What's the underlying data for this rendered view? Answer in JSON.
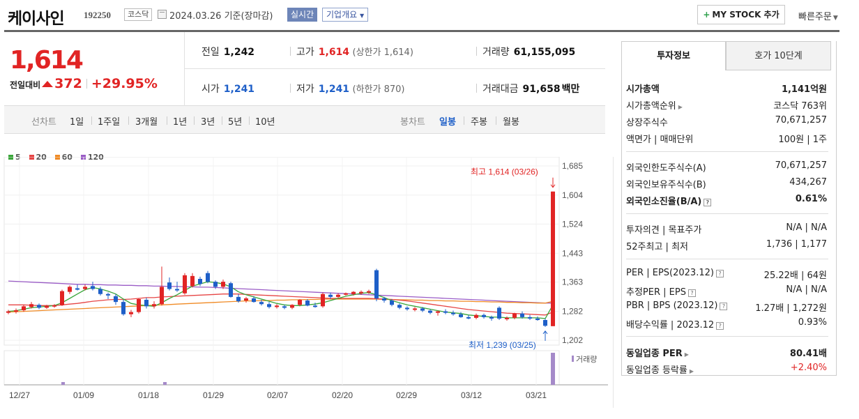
{
  "header": {
    "company_name": "케이사인",
    "code": "192250",
    "market": "코스닥",
    "date_basis": "2024.03.26 기준(장마감)",
    "realtime_button": "실시간",
    "company_overview": "기업개요",
    "mystock_label": "MY STOCK 추가",
    "quick_order": "빠른주문"
  },
  "price": {
    "current": "1,614",
    "change_label": "전일대비",
    "change_amount": "372",
    "change_percent": "+29.95%",
    "prev_close_label": "전일",
    "prev_close": "1,242",
    "high_label": "고가",
    "high": "1,614",
    "upper_limit_label": "(상한가 1,614)",
    "volume_label": "거래량",
    "volume": "61,155,095",
    "open_label": "시가",
    "open": "1,241",
    "low_label": "저가",
    "low": "1,241",
    "lower_limit_label": "(하한가 870)",
    "amount_label": "거래대금",
    "amount": "91,658",
    "amount_unit": "백만"
  },
  "toolbar": {
    "line_chart_label": "선차트",
    "line_periods": [
      "1일",
      "1주일",
      "3개월",
      "1년",
      "3년",
      "5년",
      "10년"
    ],
    "candle_label": "봉차트",
    "candle_periods": [
      "일봉",
      "주봉",
      "월봉"
    ],
    "active_candle": "일봉"
  },
  "legend": [
    {
      "name": "5",
      "color": "#3aa63a"
    },
    {
      "name": "20",
      "color": "#e64545"
    },
    {
      "name": "60",
      "color": "#f08a24"
    },
    {
      "name": "120",
      "color": "#9a5cc6"
    }
  ],
  "chart_data": {
    "type": "candlestick",
    "y_ticks": [
      "1,685",
      "1,604",
      "1,524",
      "1,443",
      "1,363",
      "1,282",
      "1,202"
    ],
    "ylim": [
      1202,
      1685
    ],
    "x_ticks": [
      "12/27",
      "01/09",
      "01/18",
      "01/29",
      "02/07",
      "02/20",
      "02/29",
      "03/12",
      "03/21"
    ],
    "max_annotation": "최고 1,614 (03/26)",
    "min_annotation": "최저 1,239 (03/25)",
    "volume_label": "거래량",
    "candles": [
      [
        1278,
        1286,
        1274,
        1282
      ],
      [
        1281,
        1290,
        1276,
        1285
      ],
      [
        1285,
        1300,
        1281,
        1296
      ],
      [
        1294,
        1308,
        1290,
        1302
      ],
      [
        1300,
        1304,
        1288,
        1292
      ],
      [
        1292,
        1300,
        1289,
        1297
      ],
      [
        1296,
        1302,
        1292,
        1299
      ],
      [
        1299,
        1342,
        1297,
        1338
      ],
      [
        1336,
        1354,
        1330,
        1350
      ],
      [
        1346,
        1356,
        1340,
        1342
      ],
      [
        1344,
        1356,
        1340,
        1350
      ],
      [
        1352,
        1364,
        1340,
        1344
      ],
      [
        1344,
        1350,
        1326,
        1330
      ],
      [
        1330,
        1334,
        1316,
        1326
      ],
      [
        1324,
        1330,
        1300,
        1308
      ],
      [
        1308,
        1314,
        1270,
        1274
      ],
      [
        1274,
        1286,
        1266,
        1280
      ],
      [
        1280,
        1318,
        1276,
        1316
      ],
      [
        1314,
        1320,
        1290,
        1296
      ],
      [
        1296,
        1310,
        1290,
        1302
      ],
      [
        1302,
        1406,
        1298,
        1350
      ],
      [
        1362,
        1376,
        1340,
        1344
      ],
      [
        1344,
        1364,
        1336,
        1340
      ],
      [
        1332,
        1388,
        1328,
        1382
      ],
      [
        1352,
        1388,
        1348,
        1380
      ],
      [
        1372,
        1378,
        1352,
        1358
      ],
      [
        1388,
        1394,
        1360,
        1364
      ],
      [
        1364,
        1368,
        1344,
        1350
      ],
      [
        1350,
        1370,
        1344,
        1364
      ],
      [
        1360,
        1364,
        1320,
        1322
      ],
      [
        1322,
        1330,
        1306,
        1310
      ],
      [
        1312,
        1322,
        1306,
        1318
      ],
      [
        1318,
        1324,
        1306,
        1308
      ],
      [
        1308,
        1314,
        1298,
        1302
      ],
      [
        1302,
        1308,
        1290,
        1294
      ],
      [
        1294,
        1302,
        1290,
        1298
      ],
      [
        1296,
        1300,
        1288,
        1292
      ],
      [
        1292,
        1302,
        1288,
        1300
      ],
      [
        1300,
        1316,
        1296,
        1314
      ],
      [
        1312,
        1316,
        1296,
        1298
      ],
      [
        1298,
        1306,
        1292,
        1296
      ],
      [
        1296,
        1334,
        1292,
        1330
      ],
      [
        1328,
        1334,
        1316,
        1322
      ],
      [
        1322,
        1332,
        1318,
        1328
      ],
      [
        1330,
        1334,
        1326,
        1332
      ],
      [
        1330,
        1338,
        1326,
        1336
      ],
      [
        1334,
        1340,
        1328,
        1336
      ],
      [
        1336,
        1342,
        1330,
        1338
      ],
      [
        1396,
        1400,
        1310,
        1318
      ],
      [
        1318,
        1322,
        1306,
        1312
      ],
      [
        1312,
        1316,
        1296,
        1300
      ],
      [
        1300,
        1304,
        1288,
        1292
      ],
      [
        1292,
        1296,
        1284,
        1288
      ],
      [
        1288,
        1294,
        1282,
        1290
      ],
      [
        1290,
        1294,
        1280,
        1284
      ],
      [
        1284,
        1288,
        1274,
        1278
      ],
      [
        1278,
        1284,
        1270,
        1282
      ],
      [
        1282,
        1288,
        1274,
        1278
      ],
      [
        1278,
        1284,
        1270,
        1274
      ],
      [
        1274,
        1280,
        1264,
        1266
      ],
      [
        1266,
        1272,
        1260,
        1264
      ],
      [
        1264,
        1276,
        1260,
        1272
      ],
      [
        1272,
        1276,
        1262,
        1266
      ],
      [
        1266,
        1270,
        1256,
        1262
      ],
      [
        1292,
        1296,
        1258,
        1262
      ],
      [
        1262,
        1268,
        1256,
        1264
      ],
      [
        1264,
        1278,
        1260,
        1276
      ],
      [
        1276,
        1282,
        1262,
        1266
      ],
      [
        1266,
        1272,
        1258,
        1262
      ],
      [
        1262,
        1268,
        1256,
        1258
      ],
      [
        1258,
        1262,
        1239,
        1242
      ],
      [
        1241,
        1614,
        1241,
        1614
      ]
    ],
    "ma5": [
      1282,
      1284,
      1288,
      1292,
      1294,
      1296,
      1298,
      1306,
      1318,
      1330,
      1342,
      1348,
      1344,
      1338,
      1330,
      1316,
      1304,
      1300,
      1298,
      1296,
      1306,
      1318,
      1328,
      1340,
      1352,
      1358,
      1364,
      1362,
      1358,
      1350,
      1336,
      1328,
      1322,
      1316,
      1310,
      1304,
      1300,
      1298,
      1298,
      1300,
      1302,
      1306,
      1312,
      1318,
      1324,
      1328,
      1332,
      1334,
      1328,
      1320,
      1312,
      1306,
      1300,
      1296,
      1292,
      1288,
      1284,
      1280,
      1278,
      1276,
      1272,
      1270,
      1268,
      1266,
      1266,
      1264,
      1264,
      1264,
      1264,
      1264,
      1262,
      1300
    ],
    "ma20": [
      1300,
      1300,
      1300,
      1299,
      1298,
      1298,
      1298,
      1300,
      1302,
      1304,
      1307,
      1310,
      1312,
      1314,
      1315,
      1315,
      1316,
      1318,
      1320,
      1320,
      1322,
      1323,
      1324,
      1325,
      1326,
      1327,
      1328,
      1329,
      1330,
      1330,
      1330,
      1329,
      1328,
      1327,
      1326,
      1325,
      1324,
      1323,
      1322,
      1321,
      1320,
      1319,
      1318,
      1318,
      1318,
      1318,
      1318,
      1318,
      1317,
      1316,
      1315,
      1313,
      1311,
      1308,
      1305,
      1302,
      1299,
      1296,
      1293,
      1290,
      1287,
      1285,
      1283,
      1281,
      1279,
      1277,
      1276,
      1275,
      1274,
      1273,
      1272,
      1280
    ],
    "ma60": [
      1280,
      1281,
      1282,
      1283,
      1284,
      1285,
      1286,
      1287,
      1288,
      1289,
      1290,
      1291,
      1292,
      1293,
      1294,
      1295,
      1296,
      1297,
      1298,
      1299,
      1300,
      1301,
      1302,
      1303,
      1304,
      1305,
      1306,
      1307,
      1308,
      1309,
      1310,
      1311,
      1311,
      1312,
      1312,
      1313,
      1313,
      1314,
      1314,
      1315,
      1315,
      1316,
      1316,
      1316,
      1316,
      1316,
      1316,
      1316,
      1316,
      1315,
      1315,
      1314,
      1314,
      1313,
      1313,
      1312,
      1312,
      1311,
      1311,
      1310,
      1310,
      1309,
      1309,
      1308,
      1308,
      1307,
      1307,
      1306,
      1306,
      1305,
      1305,
      1310
    ],
    "ma120": [
      1366,
      1365,
      1364,
      1363,
      1362,
      1361,
      1360,
      1359,
      1358,
      1357,
      1357,
      1356,
      1356,
      1355,
      1355,
      1354,
      1354,
      1353,
      1353,
      1352,
      1352,
      1351,
      1351,
      1350,
      1350,
      1349,
      1349,
      1348,
      1347,
      1346,
      1345,
      1344,
      1343,
      1342,
      1341,
      1340,
      1339,
      1338,
      1337,
      1336,
      1335,
      1334,
      1333,
      1332,
      1331,
      1330,
      1329,
      1328,
      1327,
      1326,
      1325,
      1324,
      1323,
      1322,
      1321,
      1320,
      1319,
      1318,
      1317,
      1316,
      1315,
      1314,
      1313,
      1312,
      1311,
      1310,
      1309,
      1308,
      1307,
      1306,
      1305,
      1305
    ]
  },
  "invest_tabs": [
    "투자정보",
    "호가 10단계"
  ],
  "invest": [
    {
      "label": "시가총액",
      "value": "1,141억원",
      "bold": true
    },
    {
      "label": "시가총액순위",
      "value": "코스닥 763위",
      "arrow": true
    },
    {
      "label": "상장주식수",
      "value": "70,671,257"
    },
    {
      "label": "액면가 | 매매단위",
      "value": "100원 | 1주"
    },
    {
      "label": "외국인한도주식수(A)",
      "value": "70,671,257"
    },
    {
      "label": "외국인보유주식수(B)",
      "value": "434,267"
    },
    {
      "label": "외국인소진율(B/A)",
      "value": "0.61%",
      "bold": true,
      "help": true
    },
    {
      "label": "투자의견 | 목표주가",
      "value": "N/A | N/A"
    },
    {
      "label": "52주최고 | 최저",
      "value": "1,736 | 1,177"
    },
    {
      "label": "PER | EPS(2023.12)",
      "value": "25.22배 | 64원",
      "help": true
    },
    {
      "label": "추정PER | EPS",
      "value": "N/A | N/A",
      "help": true
    },
    {
      "label": "PBR | BPS (2023.12)",
      "value": "1.27배 | 1,272원",
      "help": true
    },
    {
      "label": "배당수익률 | 2023.12",
      "value": "0.93%",
      "help": true
    },
    {
      "label": "동일업종 PER",
      "value": "80.41배",
      "bold": true,
      "arrow": true
    },
    {
      "label": "동일업종 등락률",
      "value": "+2.40%",
      "arrow": true,
      "red": true
    }
  ]
}
